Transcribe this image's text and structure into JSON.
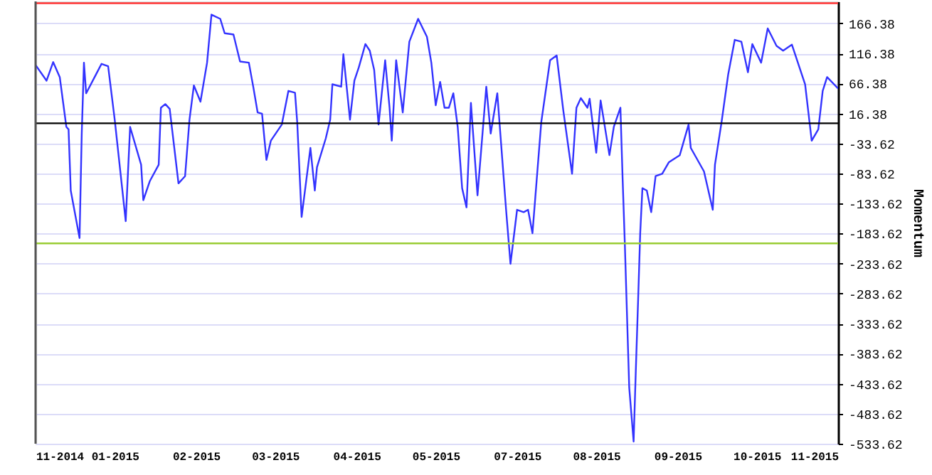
{
  "chart_data": {
    "type": "line",
    "ylabel": "Momentum",
    "x": [
      "2014-11-28",
      "2014-12-03",
      "2014-12-06",
      "2014-12-09",
      "2014-12-12",
      "2014-12-13",
      "2014-12-14",
      "2014-12-18",
      "2014-12-19",
      "2014-12-20",
      "2014-12-21",
      "2014-12-26",
      "2014-12-28",
      "2014-12-31",
      "2015-01-03",
      "2015-01-08",
      "2015-01-10",
      "2015-01-15",
      "2015-01-16",
      "2015-01-19",
      "2015-01-23",
      "2015-01-24",
      "2015-01-26",
      "2015-01-28",
      "2015-02-01",
      "2015-02-04",
      "2015-02-06",
      "2015-02-08",
      "2015-02-11",
      "2015-02-14",
      "2015-02-16",
      "2015-02-20",
      "2015-02-22",
      "2015-02-26",
      "2015-03-01",
      "2015-03-05",
      "2015-03-07",
      "2015-03-09",
      "2015-03-11",
      "2015-03-13",
      "2015-03-15",
      "2015-03-20",
      "2015-03-23",
      "2015-03-26",
      "2015-03-27",
      "2015-03-29",
      "2015-04-02",
      "2015-04-04",
      "2015-04-05",
      "2015-04-09",
      "2015-04-11",
      "2015-04-12",
      "2015-04-16",
      "2015-04-17",
      "2015-04-20",
      "2015-04-22",
      "2015-04-24",
      "2015-04-27",
      "2015-04-29",
      "2015-05-01",
      "2015-05-03",
      "2015-05-06",
      "2015-05-08",
      "2015-05-09",
      "2015-05-11",
      "2015-05-14",
      "2015-05-17",
      "2015-05-21",
      "2015-05-25",
      "2015-05-27",
      "2015-05-29",
      "2015-05-31",
      "2015-06-02",
      "2015-06-04",
      "2015-06-06",
      "2015-06-08",
      "2015-06-10",
      "2015-06-12",
      "2015-06-14",
      "2015-06-17",
      "2015-06-21",
      "2015-06-23",
      "2015-06-26",
      "2015-06-30",
      "2015-07-02",
      "2015-07-05",
      "2015-07-08",
      "2015-07-10",
      "2015-07-12",
      "2015-07-16",
      "2015-07-20",
      "2015-07-23",
      "2015-07-26",
      "2015-07-30",
      "2015-08-01",
      "2015-08-03",
      "2015-08-06",
      "2015-08-07",
      "2015-08-10",
      "2015-08-12",
      "2015-08-16",
      "2015-08-18",
      "2015-08-21",
      "2015-08-22",
      "2015-08-23",
      "2015-08-25",
      "2015-08-27",
      "2015-08-28",
      "2015-08-29",
      "2015-08-30",
      "2015-08-31",
      "2015-09-02",
      "2015-09-04",
      "2015-09-06",
      "2015-09-09",
      "2015-09-12",
      "2015-09-17",
      "2015-09-21",
      "2015-09-22",
      "2015-09-28",
      "2015-10-02",
      "2015-10-03",
      "2015-10-06",
      "2015-10-09",
      "2015-10-12",
      "2015-10-15",
      "2015-10-18",
      "2015-10-20",
      "2015-10-24",
      "2015-10-27",
      "2015-10-31",
      "2015-11-03",
      "2015-11-07",
      "2015-11-13",
      "2015-11-16",
      "2015-11-19",
      "2015-11-21",
      "2015-11-23",
      "2015-11-28"
    ],
    "series": [
      {
        "color": "#3333ff",
        "values": [
          97,
          71,
          102,
          77,
          -6,
          -10,
          -112,
          -191,
          -17,
          101,
          50,
          85,
          99,
          95,
          6,
          -163,
          -6,
          -69,
          -128,
          -96,
          -69,
          26,
          32,
          24,
          -100,
          -88,
          6,
          63,
          36,
          101,
          181,
          174,
          150,
          148,
          103,
          101,
          61,
          18,
          16,
          -61,
          -29,
          -2,
          54,
          51,
          2,
          -156,
          -41,
          -112,
          -73,
          -25,
          6,
          65,
          61,
          115,
          6,
          71,
          93,
          132,
          121,
          89,
          -2,
          105,
          26,
          -29,
          105,
          18,
          136,
          174,
          144,
          101,
          30,
          69,
          26,
          26,
          50,
          -6,
          -108,
          -140,
          34,
          -120,
          61,
          -17,
          50,
          -144,
          -234,
          -144,
          -148,
          -144,
          -183,
          2,
          105,
          113,
          22,
          -84,
          26,
          42,
          26,
          41,
          -49,
          38,
          -53,
          -6,
          26,
          -92,
          -200,
          -440,
          -530,
          -412,
          -300,
          -183,
          -108,
          -112,
          -148,
          -88,
          -84,
          -65,
          -53,
          -2,
          -41,
          -80,
          -144,
          -69,
          2,
          81,
          139,
          136,
          85,
          132,
          101,
          158,
          129,
          121,
          131,
          65,
          -29,
          -10,
          54,
          77,
          58
        ]
      }
    ],
    "xlim": [
      "2014-11-28",
      "2015-11-28"
    ],
    "xticks": [
      {
        "value": "2014-11-28",
        "label": "11-2014"
      },
      {
        "value": "2015-01-03",
        "label": "01-2015"
      },
      {
        "value": "2015-02-09",
        "label": "02-2015"
      },
      {
        "value": "2015-03-17",
        "label": "03-2015"
      },
      {
        "value": "2015-04-23",
        "label": "04-2015"
      },
      {
        "value": "2015-05-29",
        "label": "05-2015"
      },
      {
        "value": "2015-07-05",
        "label": "07-2015"
      },
      {
        "value": "2015-08-10",
        "label": "08-2015"
      },
      {
        "value": "2015-09-16",
        "label": "09-2015"
      },
      {
        "value": "2015-10-22",
        "label": "10-2015"
      },
      {
        "value": "2015-11-28",
        "label": "11-2015"
      }
    ],
    "ylim": [
      -533.62,
      203
    ],
    "yticks": [
      166.38,
      116.38,
      66.38,
      16.38,
      -33.62,
      -83.62,
      -133.62,
      -183.62,
      -233.62,
      -283.62,
      -333.62,
      -383.62,
      -433.62,
      -483.62,
      -533.62
    ],
    "ref_lines": [
      {
        "axis": "y",
        "value": 200,
        "color": "#ff3333"
      },
      {
        "axis": "y",
        "value": 0,
        "color": "#000000"
      },
      {
        "axis": "y",
        "value": -200,
        "color": "#99cc33"
      }
    ],
    "grid": "y",
    "marker": "none",
    "line_style": "solid"
  }
}
